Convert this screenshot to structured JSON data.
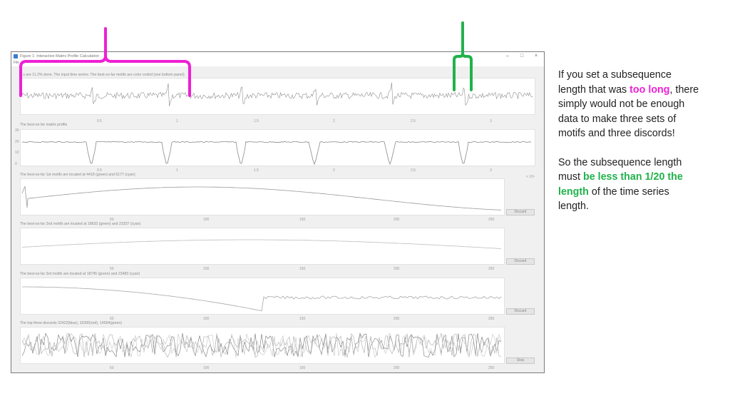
{
  "window": {
    "title": "Figure 1: Interactive Matrix Profile Calculation",
    "menu_label": "File",
    "minimize": "–",
    "maximize": "□",
    "close": "×"
  },
  "panels": {
    "data_title": "...s are 11.2% done. The input time series: The best-so-far motifs are color coded (see bottom panel)",
    "data_ticks": [
      "0.5",
      "1",
      "1.5",
      "2",
      "2.5",
      "3"
    ],
    "profile_title": "The best-so-far matrix profile",
    "profile_ticks": [
      "0.5",
      "1",
      "1.5",
      "2",
      "2.5",
      "3"
    ],
    "profile_yticks": [
      "30",
      "20",
      "10",
      "0"
    ],
    "exponent_label": "× 10⁴",
    "motif1_title": "The best-so-far 1st motifs are located at 4418 (green) and 6177 (cyan)",
    "motif2_title": "The best-so-far 2nd motifs are located at 18633 (green) and 23337 (cyan)",
    "motif3_title": "The best-so-far 3rd motifs are located at 18745 (green) and 23483 (cyan)",
    "discord_title": "The top three discords 32422(blue), 16395(red), 14594(green)",
    "motif_ticks": [
      "50",
      "100",
      "150",
      "200",
      "250"
    ],
    "discard_label": "Discard",
    "stop_label": "Stop"
  },
  "annotation": {
    "para1_pre": "If you set a subsequence length that was ",
    "para1_highlight": "too long",
    "para1_post": ", there simply would not be enough data to make three sets of motifs and three discords!",
    "para2_pre": "So the subsequence length must ",
    "para2_highlight": "be less than 1/20 the length",
    "para2_post": " of the time series length.",
    "colors": {
      "pink": "#ee1fd5",
      "green": "#21b24b"
    }
  }
}
